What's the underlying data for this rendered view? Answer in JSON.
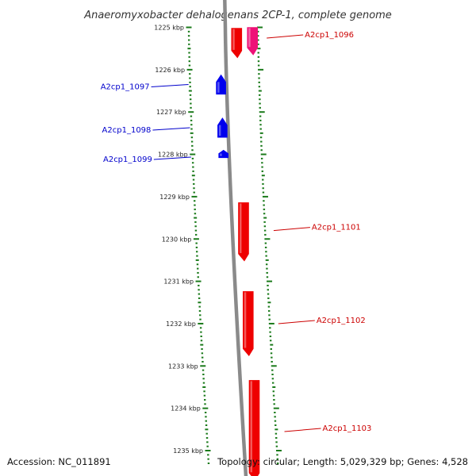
{
  "title": "Anaeromyxobacter dehalogenans 2CP-1, complete genome",
  "footer": {
    "accession": "Accession: NC_011891",
    "summary": "Topology: circular; Length: 5,029,329 bp; Genes: 4,528"
  },
  "colors": {
    "tick": "#1a7a1a",
    "backbone": "#8a8a8a",
    "forward_gene": "#ee0000",
    "forward_gene_alt": "#ee1177",
    "reverse_gene": "#0000ee",
    "forward_label": "#cc0000",
    "reverse_label": "#0000cc"
  },
  "scale": {
    "unit": "kbp",
    "ticks": [
      {
        "kbp": 1225,
        "label": "1225 kbp"
      },
      {
        "kbp": 1226,
        "label": "1226 kbp"
      },
      {
        "kbp": 1227,
        "label": "1227 kbp"
      },
      {
        "kbp": 1228,
        "label": "1228 kbp"
      },
      {
        "kbp": 1229,
        "label": "1229 kbp"
      },
      {
        "kbp": 1230,
        "label": "1230 kbp"
      },
      {
        "kbp": 1231,
        "label": "1231 kbp"
      },
      {
        "kbp": 1232,
        "label": "1232 kbp"
      },
      {
        "kbp": 1233,
        "label": "1233 kbp"
      },
      {
        "kbp": 1234,
        "label": "1234 kbp"
      },
      {
        "kbp": 1235,
        "label": "1235 kbp"
      }
    ]
  },
  "genes": [
    {
      "id": "g1096a",
      "label": "",
      "strand": "+",
      "start_kbp": 1225.02,
      "end_kbp": 1225.72,
      "color": "forward_gene"
    },
    {
      "id": "g1096",
      "label": "A2cp1_1096",
      "strand": "+",
      "start_kbp": 1225.0,
      "end_kbp": 1225.65,
      "color": "forward_gene_alt"
    },
    {
      "id": "g1097",
      "label": "A2cp1_1097",
      "strand": "-",
      "start_kbp": 1226.12,
      "end_kbp": 1226.58,
      "color": "reverse_gene"
    },
    {
      "id": "g1098",
      "label": "A2cp1_1098",
      "strand": "-",
      "start_kbp": 1227.14,
      "end_kbp": 1227.6,
      "color": "reverse_gene"
    },
    {
      "id": "g1099",
      "label": "A2cp1_1099",
      "strand": "-",
      "start_kbp": 1227.9,
      "end_kbp": 1228.08,
      "color": "reverse_gene"
    },
    {
      "id": "g1101",
      "label": "A2cp1_1101",
      "strand": "+",
      "start_kbp": 1229.14,
      "end_kbp": 1230.52,
      "color": "forward_gene"
    },
    {
      "id": "g1102",
      "label": "A2cp1_1102",
      "strand": "+",
      "start_kbp": 1231.24,
      "end_kbp": 1232.76,
      "color": "forward_gene"
    },
    {
      "id": "g1103",
      "label": "A2cp1_1103",
      "strand": "+",
      "start_kbp": 1233.34,
      "end_kbp": 1235.7,
      "color": "forward_gene"
    }
  ]
}
